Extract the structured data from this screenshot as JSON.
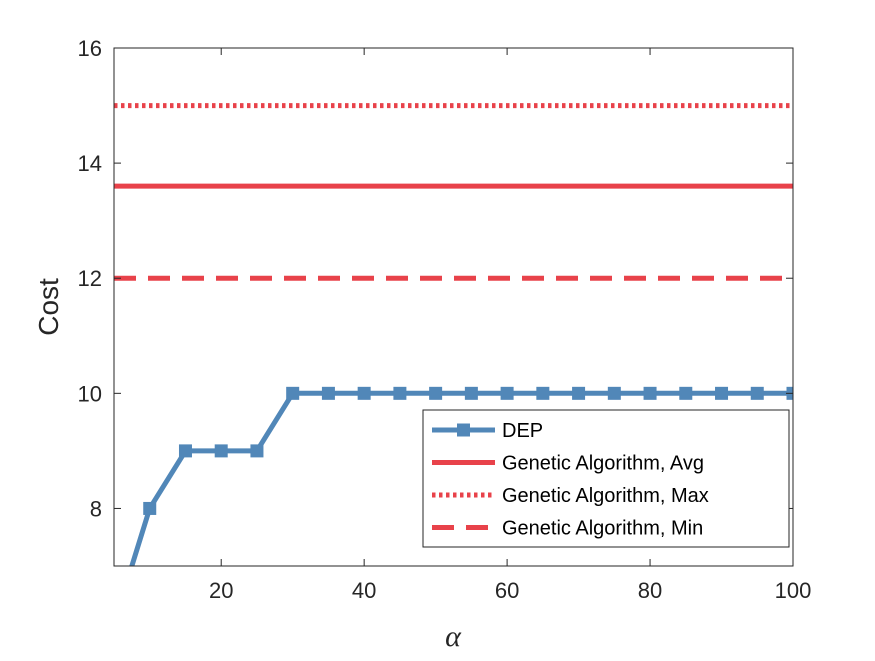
{
  "chart_data": {
    "type": "line",
    "xlabel": "α",
    "ylabel": "Cost",
    "xlim": [
      5,
      100
    ],
    "ylim": [
      7,
      16
    ],
    "grid": false,
    "legend_position": "bottom-right",
    "xticks": [
      20,
      40,
      60,
      80,
      100
    ],
    "yticks": [
      8,
      10,
      12,
      14,
      16
    ],
    "series": [
      {
        "name": "DEP",
        "style": "solid-square-markers",
        "color": "#5187b8",
        "x": [
          5,
          10,
          15,
          20,
          25,
          30,
          35,
          40,
          45,
          50,
          55,
          60,
          65,
          70,
          75,
          80,
          85,
          90,
          95,
          100
        ],
        "y": [
          6,
          8,
          9,
          9,
          9,
          10,
          10,
          10,
          10,
          10,
          10,
          10,
          10,
          10,
          10,
          10,
          10,
          10,
          10,
          10
        ]
      },
      {
        "name": "Genetic Algorithm, Avg",
        "style": "solid",
        "color": "#e8424a",
        "x": [
          5,
          100
        ],
        "y": [
          13.6,
          13.6
        ]
      },
      {
        "name": "Genetic Algorithm, Max",
        "style": "dotted",
        "color": "#e8424a",
        "x": [
          5,
          100
        ],
        "y": [
          15,
          15
        ]
      },
      {
        "name": "Genetic Algorithm, Min",
        "style": "dashed",
        "color": "#e8424a",
        "x": [
          5,
          100
        ],
        "y": [
          12,
          12
        ]
      }
    ]
  }
}
